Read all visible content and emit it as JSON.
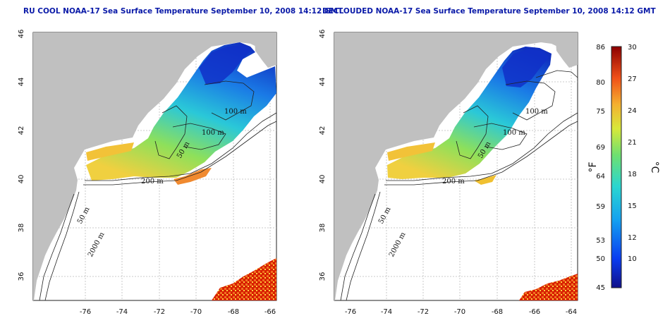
{
  "titles": {
    "left": "RU COOL NOAA-17 Sea Surface Temperature September 10, 2008 14:12 GMT",
    "right": "DECLOUDED NOAA-17 Sea Surface Temperature September 10, 2008 14:12 GMT"
  },
  "axes": {
    "longitude_ticks": [
      "-76",
      "-74",
      "-72",
      "-70",
      "-68",
      "-66",
      "-64"
    ],
    "latitude_ticks": [
      "46",
      "44",
      "42",
      "40",
      "38",
      "36"
    ]
  },
  "contour_labels": {
    "left": [
      "100 m",
      "100 m",
      "50 m",
      "200 m",
      "50 m",
      "2000 m"
    ],
    "right": [
      "100 m",
      "100 m",
      "50 m",
      "200 m",
      "50 m",
      "2000 m"
    ]
  },
  "colorbar": {
    "fahrenheit_ticks": [
      "86",
      "80",
      "75",
      "69",
      "64",
      "59",
      "53",
      "50",
      "45"
    ],
    "celsius_ticks": [
      "30",
      "27",
      "24",
      "21",
      "18",
      "15",
      "12",
      "10"
    ],
    "fahrenheit_unit": "°F",
    "celsius_unit": "°C"
  },
  "colors": {
    "land": "#c0c0c0",
    "cold": "#0a2fd0",
    "warm": "#c81400",
    "title": "#0a1aa8"
  }
}
